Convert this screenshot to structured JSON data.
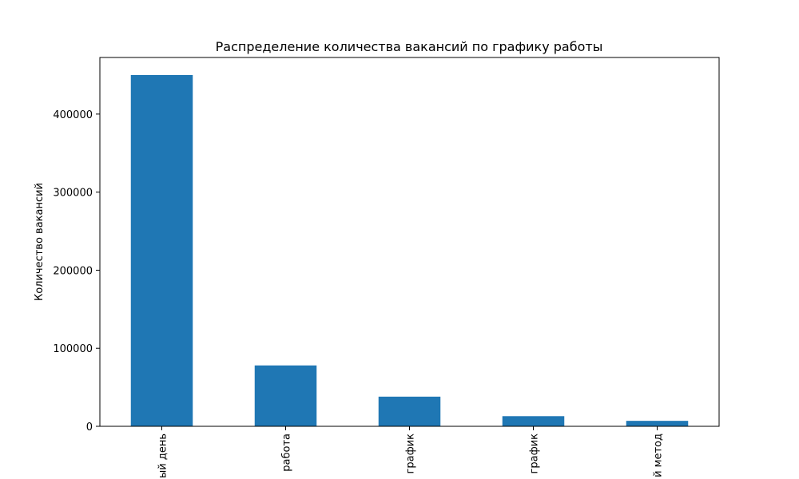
{
  "chart_data": {
    "type": "bar",
    "title": "Распределение количества вакансий по графику работы",
    "xlabel": "",
    "ylabel": "Количество вакансий",
    "categories": [
      "ый день",
      "работа",
      "график",
      "график",
      "й метод"
    ],
    "values": [
      450000,
      78000,
      38000,
      13000,
      7000
    ],
    "ylim": [
      0,
      472500
    ],
    "yticks": [
      0,
      100000,
      200000,
      300000,
      400000
    ],
    "bar_color": "#1f77b4",
    "grid": false,
    "legend": "none"
  }
}
